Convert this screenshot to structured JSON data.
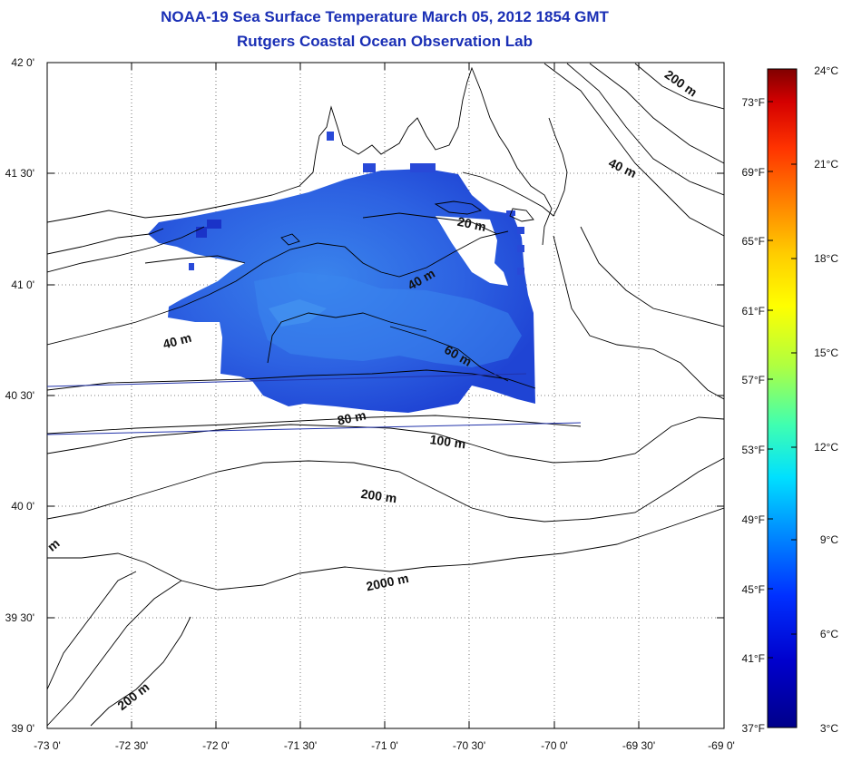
{
  "header": {
    "title": "NOAA-19 Sea Surface Temperature March 05, 2012 1854 GMT",
    "subtitle": "Rutgers Coastal Ocean Observation Lab"
  },
  "map": {
    "lon_range": [
      -73,
      -69
    ],
    "lat_range": [
      39,
      42
    ],
    "lon_ticks": [
      "-73 0'",
      "-72 30'",
      "-72 0'",
      "-71 30'",
      "-71 0'",
      "-70 30'",
      "-70 0'",
      "-69 30'",
      "-69 0'"
    ],
    "lat_ticks": [
      "42 0'",
      "41 30'",
      "41 0'",
      "40 30'",
      "40 0'",
      "39 30'",
      "39 0'"
    ],
    "right_ticks_f": [
      "73°F",
      "69°F",
      "65°F",
      "61°F",
      "57°F",
      "53°F",
      "49°F",
      "45°F",
      "41°F"
    ],
    "contour_labels": [
      "200 m",
      "40 m",
      "20 m",
      "40 m",
      "40 m",
      "60 m",
      "80 m",
      "100 m",
      "200 m",
      "2000 m",
      "200 m",
      "m"
    ]
  },
  "colorbar": {
    "min_label": "3°C",
    "max_label": "24°C",
    "celsius_ticks": [
      "21°C",
      "18°C",
      "15°C",
      "12°C",
      "9°C",
      "6°C"
    ],
    "bottom_f_label": "37°F",
    "colors": [
      "#800000",
      "#d40000",
      "#ff3300",
      "#ff8000",
      "#ffcc00",
      "#ffff00",
      "#b0ff40",
      "#40ffb0",
      "#00e0ff",
      "#0090ff",
      "#0030ff",
      "#0000cc",
      "#00008a"
    ]
  },
  "sst_colors": {
    "base": "#2f5ee0",
    "light": "#3a80ea",
    "dark": "#1e3fd0"
  }
}
